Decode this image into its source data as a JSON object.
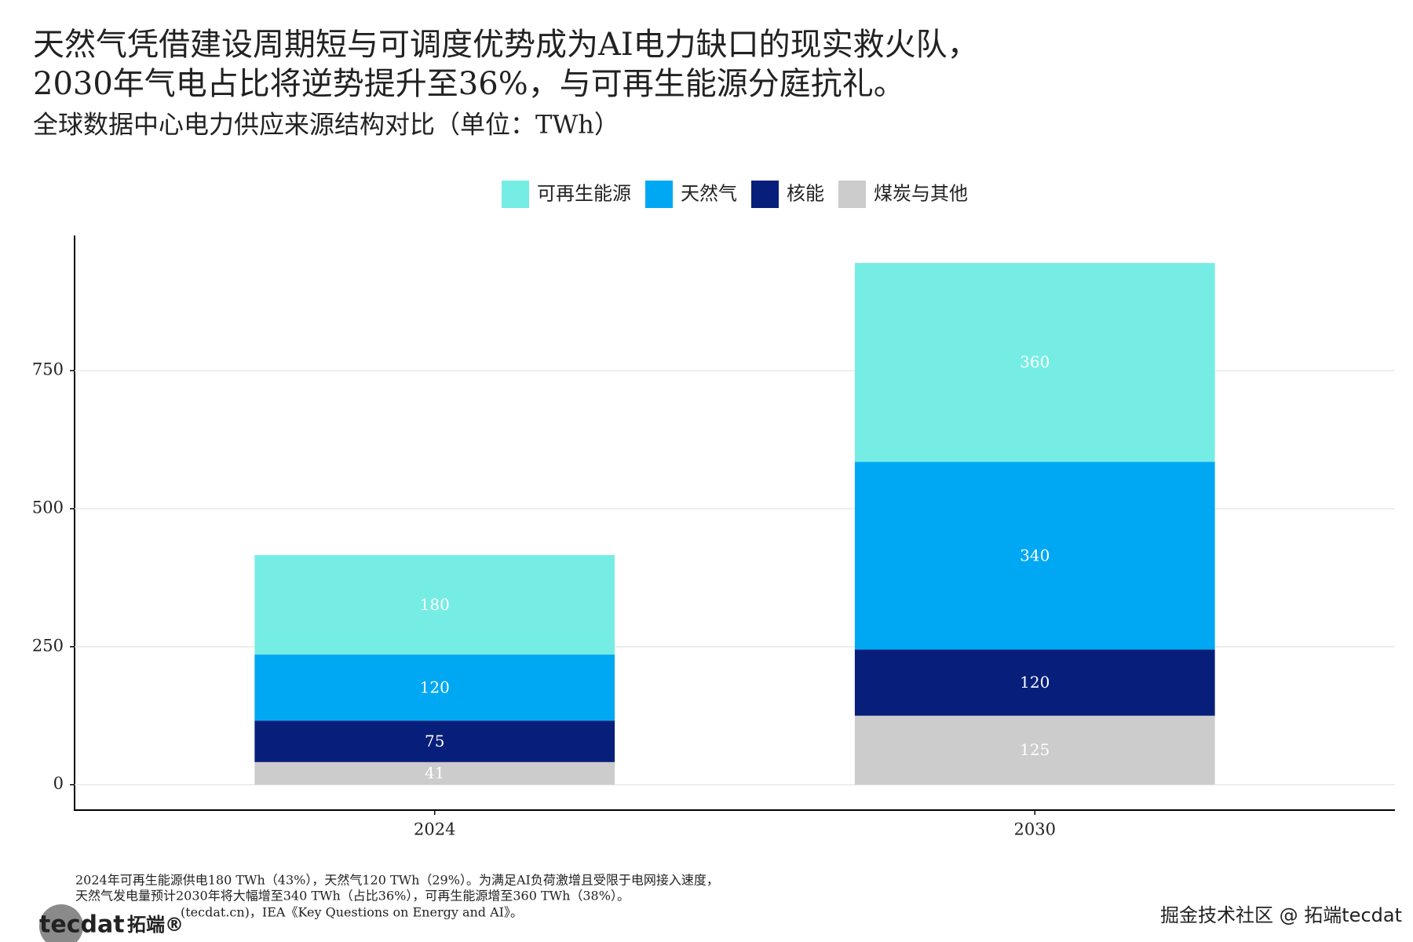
{
  "chart_data": {
    "type": "stacked_bar",
    "title": [
      "天然气凭借建设周期短与可调度优势成为AI电力缺口的现实救火队，",
      "2030年气电占比将逆势提升至36%，与可再生能源分庭抗礼。"
    ],
    "subtitle": "全球数据中心电力供应来源结构对比（单位：TWh）",
    "categories": [
      "2024",
      "2030"
    ],
    "series": [
      {
        "name": "可再生能源",
        "color": "#76ede4",
        "values": [
          180,
          360
        ]
      },
      {
        "name": "天然气",
        "color": "#00a8f3",
        "values": [
          120,
          340
        ]
      },
      {
        "name": "核能",
        "color": "#071f7a",
        "values": [
          75,
          120
        ]
      },
      {
        "name": "煤炭与其他",
        "color": "#cccccc",
        "values": [
          41,
          125
        ]
      }
    ],
    "ylim": [
      -46,
      992
    ],
    "yticks": [
      0,
      250,
      500,
      750
    ],
    "grid": true,
    "legend": "top",
    "source_note": [
      "2024年可再生能源供电180 TWh（43%），天然气120 TWh（29%）。为满足AI负荷激增且受限于电网接入速度，",
      "天然气发电量预计2030年将大幅增至340 TWh（占比36%），可再生能源增至360 TWh（38%）。",
      "(tecdat.cn)，IEA《Key Questions on Energy and AI》。"
    ],
    "logo": [
      "tecdat",
      "拓端®"
    ],
    "watermark": "掘金技术社区 @ 拓端tecdat"
  }
}
